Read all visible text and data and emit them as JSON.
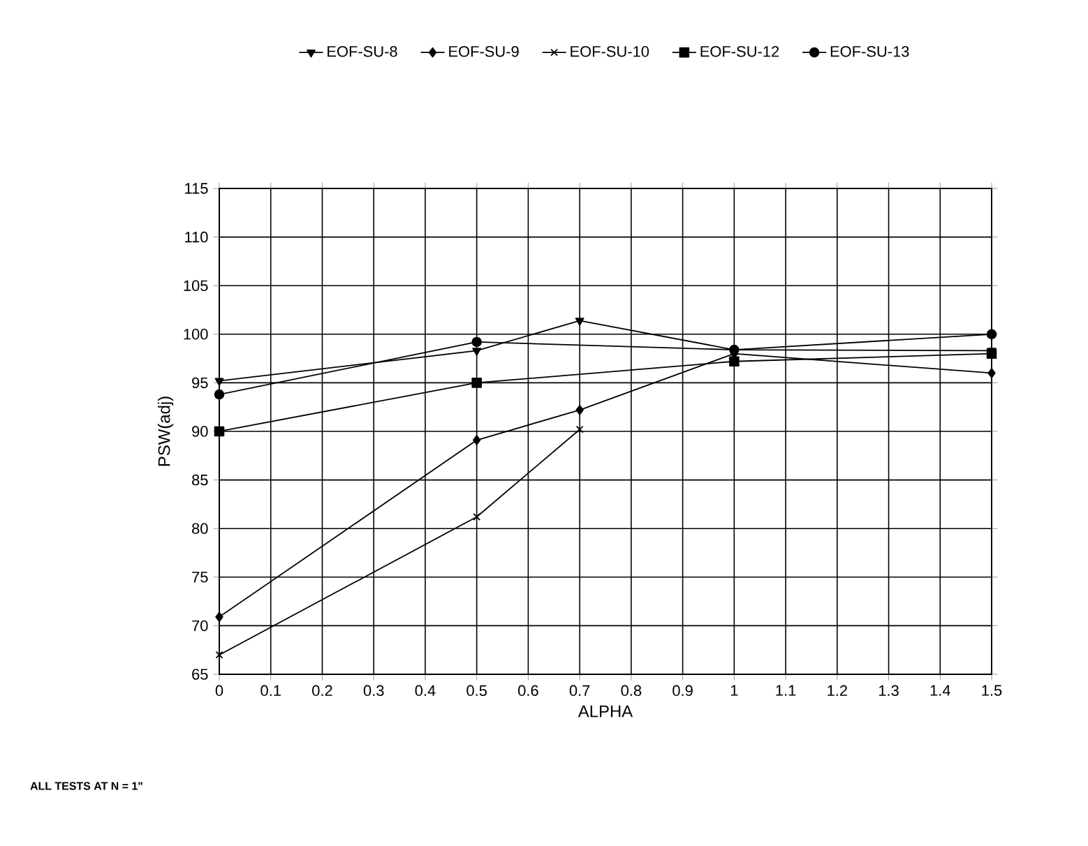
{
  "chart_data": {
    "type": "line",
    "xlabel": "ALPHA",
    "ylabel": "PSW(adj)",
    "annotations": [
      "ALL TESTS AT N = 1\""
    ],
    "xlim": [
      0,
      1.5
    ],
    "xticks": [
      0,
      0.1,
      0.2,
      0.3,
      0.4,
      0.5,
      0.6,
      0.7,
      0.8,
      0.9,
      1,
      1.1,
      1.2,
      1.3,
      1.4,
      1.5
    ],
    "ylim": [
      65,
      115
    ],
    "yticks": [
      65,
      70,
      75,
      80,
      85,
      90,
      95,
      100,
      105,
      110,
      115
    ],
    "grid": true,
    "legend": "top",
    "line_style": "solid",
    "series": [
      {
        "name": "EOF-SU-8",
        "color": "#000000",
        "marker": "triangle",
        "x": [
          0,
          0.5,
          0.7,
          1,
          1.5
        ],
        "values": [
          95.2,
          98.3,
          101.4,
          98.4,
          98.3
        ]
      },
      {
        "name": "EOF-SU-9",
        "color": "#000000",
        "marker": "diamond",
        "x": [
          0,
          0.5,
          0.7,
          1,
          1.5
        ],
        "values": [
          70.9,
          89.1,
          92.2,
          98.0,
          96.0
        ]
      },
      {
        "name": "EOF-SU-10",
        "color": "#000000",
        "marker": "cross",
        "x": [
          0,
          0.5,
          0.7
        ],
        "values": [
          67.0,
          81.2,
          90.2
        ]
      },
      {
        "name": "EOF-SU-12",
        "color": "#000000",
        "marker": "square",
        "x": [
          0,
          0.5,
          1,
          1.5
        ],
        "values": [
          90.0,
          95.0,
          97.2,
          98.0
        ]
      },
      {
        "name": "EOF-SU-13",
        "color": "#000000",
        "marker": "circle",
        "x": [
          0,
          0.5,
          1,
          1.5
        ],
        "values": [
          93.8,
          99.2,
          98.4,
          100.0
        ]
      }
    ]
  }
}
